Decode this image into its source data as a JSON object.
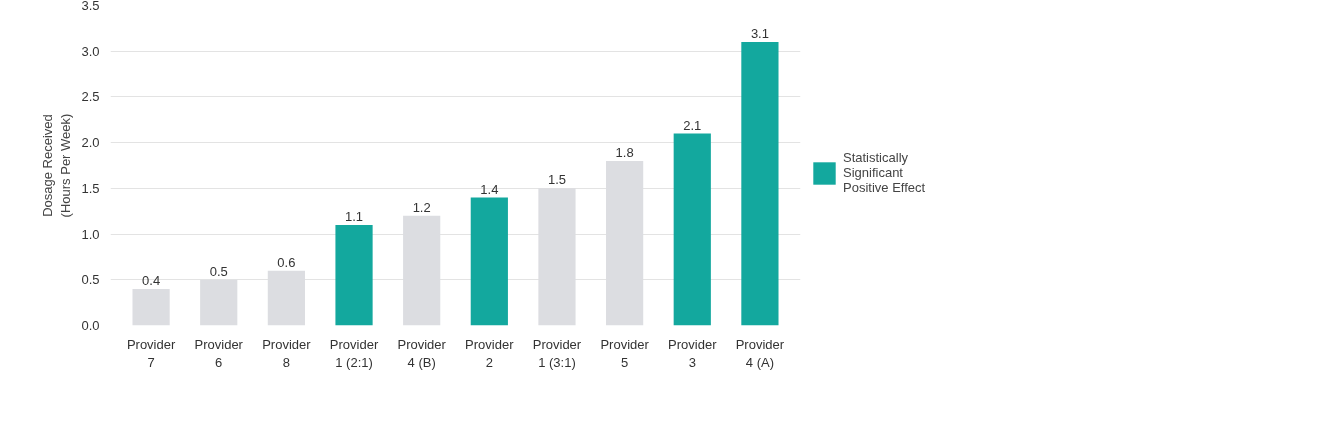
{
  "chart_data": {
    "type": "bar",
    "ylabel": "Dosage Received\n(Hours Per Week)",
    "categories": [
      "Provider 7",
      "Provider 6",
      "Provider 8",
      "Provider 1 (2:1)",
      "Provider 4 (B)",
      "Provider 2",
      "Provider 1 (3:1)",
      "Provider 5",
      "Provider 3",
      "Provider 4 (A)"
    ],
    "series": [
      {
        "name": "Statistically Significant Positive Effect",
        "color": "#13a89e",
        "values": [
          null,
          null,
          null,
          1.1,
          null,
          1.4,
          null,
          null,
          2.1,
          3.1
        ]
      },
      {
        "color": "#dcdde1",
        "values": [
          0.4,
          0.5,
          0.6,
          null,
          1.2,
          null,
          1.5,
          1.8,
          null,
          null
        ]
      }
    ],
    "ylim": [
      0,
      3.5
    ],
    "yticks": [
      {
        "value": 0,
        "label": "0.0"
      },
      {
        "value": 0.5,
        "label": "0.5"
      },
      {
        "value": 1,
        "label": "1.0"
      },
      {
        "value": 1.5,
        "label": "1.5"
      },
      {
        "value": 2,
        "label": "2.0"
      },
      {
        "value": 2.5,
        "label": "2.5"
      },
      {
        "value": 3,
        "label": "3.0"
      },
      {
        "value": 3.5,
        "label": "3.5"
      }
    ],
    "grid": "y",
    "data_labels": true,
    "legend": "right"
  }
}
